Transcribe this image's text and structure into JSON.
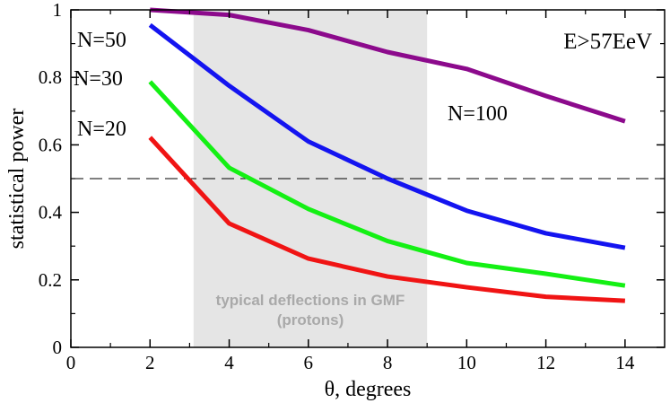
{
  "chart_data": {
    "type": "line",
    "xlabel": "θ, degrees",
    "ylabel": "statistical power",
    "xlim": [
      0,
      15
    ],
    "ylim": [
      0,
      1
    ],
    "xticks": [
      "0",
      "2",
      "4",
      "6",
      "8",
      "10",
      "12",
      "14"
    ],
    "yticks": [
      "0",
      "0.2",
      "0.4",
      "0.6",
      "0.8",
      "1"
    ],
    "x": [
      2,
      4,
      6,
      8,
      10,
      12,
      14
    ],
    "annotation": "E>57EeV",
    "shaded_band": {
      "x_range": [
        3.1,
        9.0
      ],
      "label_line1": "typical deflections in GMF",
      "label_line2": "(protons)",
      "color": "#e5e5e5"
    },
    "reference_line": {
      "y": 0.5,
      "style": "dashed"
    },
    "series": [
      {
        "name": "N=100",
        "color": "#8c0a8c",
        "values": [
          1.0,
          0.985,
          0.94,
          0.875,
          0.825,
          0.745,
          0.67
        ]
      },
      {
        "name": "N=50",
        "color": "#1414f0",
        "values": [
          0.955,
          0.775,
          0.61,
          0.5,
          0.405,
          0.338,
          0.295
        ]
      },
      {
        "name": "N=30",
        "color": "#14f014",
        "values": [
          0.787,
          0.532,
          0.41,
          0.315,
          0.25,
          0.218,
          0.183
        ]
      },
      {
        "name": "N=20",
        "color": "#f01414",
        "values": [
          0.622,
          0.367,
          0.263,
          0.21,
          0.178,
          0.15,
          0.138
        ]
      }
    ]
  }
}
